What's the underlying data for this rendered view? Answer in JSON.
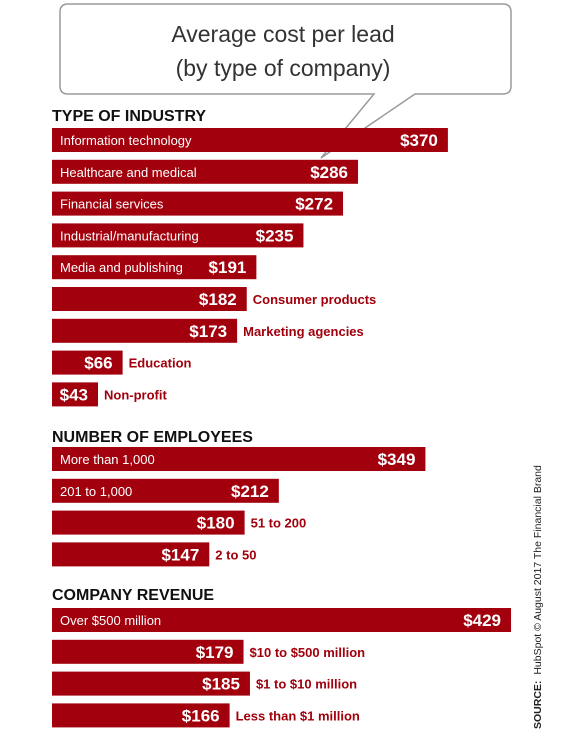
{
  "chart_data": {
    "type": "bar",
    "orientation": "horizontal",
    "title_lines": [
      "Average cost per lead",
      "(by type of company)"
    ],
    "value_prefix": "$",
    "groups": [
      {
        "title": "TYPE OF INDUSTRY",
        "categories": [
          "Information technology",
          "Healthcare and medical",
          "Financial services",
          "Industrial/manufacturing",
          "Media and publishing",
          "Consumer products",
          "Marketing agencies",
          "Education",
          "Non-profit"
        ],
        "values": [
          370,
          286,
          272,
          235,
          191,
          182,
          173,
          66,
          43
        ]
      },
      {
        "title": "NUMBER OF EMPLOYEES",
        "categories": [
          "More than 1,000",
          "201 to 1,000",
          "51 to 200",
          "2 to 50"
        ],
        "values": [
          349,
          212,
          180,
          147
        ]
      },
      {
        "title": "COMPANY REVENUE",
        "categories": [
          "Over $500 million",
          "$10 to $500 million",
          "$1 to $10 million",
          "Less than $1 million"
        ],
        "values": [
          429,
          179,
          185,
          166
        ]
      }
    ],
    "source_label": "SOURCE:",
    "source_text": "HubSpot © August 2017 The Financial Brand"
  },
  "colors": {
    "bar": "#a1000c",
    "bar_text": "#ffffff",
    "outside_label": "#a1000c",
    "title_border": "#9a9a9a",
    "section_title": "#111111"
  }
}
